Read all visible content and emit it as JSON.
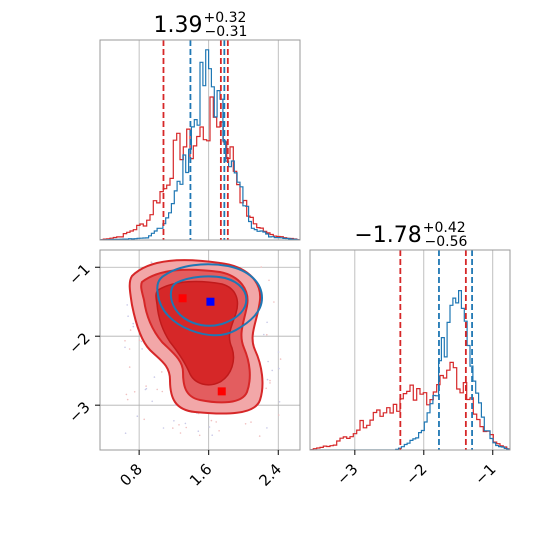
{
  "colors": {
    "series_red": "#d62728",
    "series_blue": "#1f77b4",
    "marker_blue": "#0000ff",
    "marker_red": "#ff0000",
    "grid": "#b0b0b0"
  },
  "chart_data": [
    {
      "panel": "top-left",
      "type": "histogram",
      "title": {
        "main": "1.39",
        "sup": "+0.32",
        "sub": "−0.31"
      },
      "xlim": [
        0.35,
        2.65
      ],
      "grid": true,
      "tick_labels_x": [],
      "vlines_red": [
        1.08,
        1.74,
        1.82
      ],
      "vlines_blue": [
        1.39,
        1.78
      ],
      "hist_red_curve": [
        [
          0.35,
          0
        ],
        [
          0.6,
          0.02
        ],
        [
          0.75,
          0.06
        ],
        [
          0.9,
          0.1
        ],
        [
          1.0,
          0.22
        ],
        [
          1.1,
          0.28
        ],
        [
          1.2,
          0.45
        ],
        [
          1.3,
          0.52
        ],
        [
          1.4,
          0.5
        ],
        [
          1.5,
          0.56
        ],
        [
          1.6,
          0.62
        ],
        [
          1.7,
          0.7
        ],
        [
          1.8,
          0.55
        ],
        [
          1.9,
          0.4
        ],
        [
          2.0,
          0.2
        ],
        [
          2.1,
          0.1
        ],
        [
          2.3,
          0.03
        ],
        [
          2.65,
          0
        ]
      ],
      "hist_blue_curve": [
        [
          0.35,
          0
        ],
        [
          0.9,
          0.01
        ],
        [
          1.0,
          0.05
        ],
        [
          1.1,
          0.1
        ],
        [
          1.2,
          0.22
        ],
        [
          1.3,
          0.35
        ],
        [
          1.4,
          0.55
        ],
        [
          1.5,
          0.78
        ],
        [
          1.6,
          0.92
        ],
        [
          1.7,
          0.75
        ],
        [
          1.8,
          0.55
        ],
        [
          1.9,
          0.35
        ],
        [
          2.0,
          0.22
        ],
        [
          2.1,
          0.08
        ],
        [
          2.3,
          0.02
        ],
        [
          2.65,
          0
        ]
      ]
    },
    {
      "panel": "bottom-left",
      "type": "contour",
      "xlim": [
        0.35,
        2.65
      ],
      "ylim": [
        -3.65,
        -0.75
      ],
      "grid": true,
      "x_ticks": [
        0.8,
        1.6,
        2.4
      ],
      "x_tick_labels": [
        "0.8",
        "1.6",
        "2.4"
      ],
      "y_ticks": [
        -1,
        -2,
        -3
      ],
      "y_tick_labels": [
        "−1",
        "−2",
        "−3"
      ],
      "markers": [
        {
          "color": "blue",
          "x": 1.62,
          "y": -1.5
        },
        {
          "color": "red",
          "x": 1.3,
          "y": -1.45
        },
        {
          "color": "red",
          "x": 1.75,
          "y": -2.8
        }
      ]
    },
    {
      "panel": "bottom-right",
      "type": "histogram",
      "title": {
        "main": "−1.78",
        "sup": "+0.42",
        "sub": "−0.56"
      },
      "xlim": [
        -3.65,
        -0.75
      ],
      "grid": true,
      "x_ticks": [
        -3,
        -2,
        -1
      ],
      "x_tick_labels": [
        "−3",
        "−2",
        "−1"
      ],
      "vlines_red": [
        -2.34,
        -1.39
      ],
      "vlines_blue": [
        -1.78,
        -1.3
      ],
      "hist_red_curve": [
        [
          -3.65,
          0
        ],
        [
          -3.3,
          0.03
        ],
        [
          -3.0,
          0.1
        ],
        [
          -2.7,
          0.2
        ],
        [
          -2.4,
          0.25
        ],
        [
          -2.2,
          0.3
        ],
        [
          -2.0,
          0.28
        ],
        [
          -1.8,
          0.35
        ],
        [
          -1.6,
          0.4
        ],
        [
          -1.4,
          0.34
        ],
        [
          -1.25,
          0.2
        ],
        [
          -1.1,
          0.1
        ],
        [
          -0.9,
          0.03
        ],
        [
          -0.75,
          0
        ]
      ],
      "hist_blue_curve": [
        [
          -3.65,
          0
        ],
        [
          -2.4,
          0
        ],
        [
          -2.2,
          0.04
        ],
        [
          -2.0,
          0.1
        ],
        [
          -1.85,
          0.28
        ],
        [
          -1.7,
          0.55
        ],
        [
          -1.6,
          0.8
        ],
        [
          -1.5,
          0.95
        ],
        [
          -1.4,
          0.8
        ],
        [
          -1.3,
          0.5
        ],
        [
          -1.2,
          0.28
        ],
        [
          -1.1,
          0.12
        ],
        [
          -0.95,
          0.03
        ],
        [
          -0.75,
          0
        ]
      ]
    }
  ]
}
